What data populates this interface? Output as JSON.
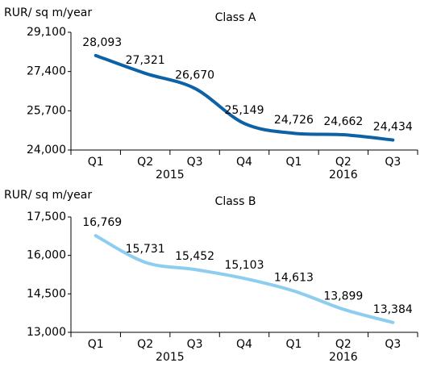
{
  "chart_data": [
    {
      "type": "line",
      "title": "Class A",
      "y_label": "RUR/ sq m/year",
      "categories": [
        "Q1",
        "Q2",
        "Q3",
        "Q4",
        "Q1",
        "Q2",
        "Q3"
      ],
      "groups": [
        {
          "label": "2015",
          "span": 4
        },
        {
          "label": "2016",
          "span": 3
        }
      ],
      "series": [
        {
          "name": "Class A",
          "color": "#0d62a6",
          "values": [
            28093,
            27321,
            26670,
            25149,
            24726,
            24662,
            24434
          ],
          "value_labels": [
            "28,093",
            "27,321",
            "26,670",
            "25,149",
            "24,726",
            "24,662",
            "24,434"
          ]
        }
      ],
      "ylim": [
        24000,
        29100
      ],
      "yticks": [
        {
          "value": 24000,
          "label": "24,000"
        },
        {
          "value": 25700,
          "label": "25,700"
        },
        {
          "value": 27400,
          "label": "27,400"
        },
        {
          "value": 29100,
          "label": "29,100"
        }
      ]
    },
    {
      "type": "line",
      "title": "Class B",
      "y_label": "RUR/ sq m/year",
      "categories": [
        "Q1",
        "Q2",
        "Q3",
        "Q4",
        "Q1",
        "Q2",
        "Q3"
      ],
      "groups": [
        {
          "label": "2015",
          "span": 4
        },
        {
          "label": "2016",
          "span": 3
        }
      ],
      "series": [
        {
          "name": "Class B",
          "color": "#8ccdf0",
          "values": [
            16769,
            15731,
            15452,
            15103,
            14613,
            13899,
            13384
          ],
          "value_labels": [
            "16,769",
            "15,731",
            "15,452",
            "15,103",
            "14,613",
            "13,899",
            "13,384"
          ]
        }
      ],
      "ylim": [
        13000,
        17500
      ],
      "yticks": [
        {
          "value": 13000,
          "label": "13,000"
        },
        {
          "value": 14500,
          "label": "14,500"
        },
        {
          "value": 16000,
          "label": "16,000"
        },
        {
          "value": 17500,
          "label": "17,500"
        }
      ]
    }
  ]
}
